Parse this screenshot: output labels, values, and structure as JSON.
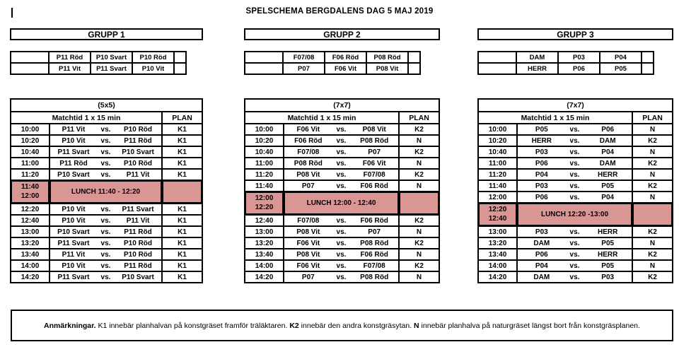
{
  "title": "SPELSCHEMA BERGDALENS DAG 5 MAJ 2019",
  "vs_label": "vs.",
  "colors": {
    "lunch_bg": "#d99694",
    "border": "#000000"
  },
  "groups": [
    {
      "name": "GRUPP 1",
      "format": "(5x5)",
      "matchtid_label": "Matchtid 1 x 15 min",
      "plan_label": "PLAN",
      "teams": [
        [
          "P11 Röd",
          "P10 Svart",
          "P10 Röd"
        ],
        [
          "P11 Vit",
          "P11 Svart",
          "P10 Vit"
        ]
      ],
      "schedule": [
        {
          "time": "10:00",
          "home": "P11 Vit",
          "away": "P10 Röd",
          "plan": "K1"
        },
        {
          "time": "10:20",
          "home": "P10 Vit",
          "away": "P11 Röd",
          "plan": "K1"
        },
        {
          "time": "10:40",
          "home": "P11 Svart",
          "away": "P10 Svart",
          "plan": "K1"
        },
        {
          "time": "11:00",
          "home": "P11 Röd",
          "away": "P10 Röd",
          "plan": "K1"
        },
        {
          "time": "11:20",
          "home": "P10 Svart",
          "away": "P11 Vit",
          "plan": "K1"
        },
        {
          "lunch": true,
          "times": [
            "11:40",
            "12:00"
          ],
          "label": "LUNCH 11:40 - 12:20"
        },
        {
          "time": "12:20",
          "home": "P10 Vit",
          "away": "P11 Svart",
          "plan": "K1"
        },
        {
          "time": "12:40",
          "home": "P10 Vit",
          "away": "P11 Vit",
          "plan": "K1"
        },
        {
          "time": "13:00",
          "home": "P10 Svart",
          "away": "P11 Röd",
          "plan": "K1"
        },
        {
          "time": "13:20",
          "home": "P11 Svart",
          "away": "P10 Röd",
          "plan": "K1"
        },
        {
          "time": "13:40",
          "home": "P11 Vit",
          "away": "P10 Röd",
          "plan": "K1"
        },
        {
          "time": "14:00",
          "home": "P10 Vit",
          "away": "P11 Röd",
          "plan": "K1"
        },
        {
          "time": "14:20",
          "home": "P11 Svart",
          "away": "P10 Svart",
          "plan": "K1"
        }
      ]
    },
    {
      "name": "GRUPP 2",
      "format": "(7x7)",
      "matchtid_label": "Matchtid 1 x 15 min",
      "plan_label": "PLAN",
      "teams": [
        [
          "F07/08",
          "F06 Röd",
          "P08 Röd"
        ],
        [
          "P07",
          "F06 Vit",
          "P08 Vit"
        ]
      ],
      "schedule": [
        {
          "time": "10:00",
          "home": "F06 Vit",
          "away": "P08 Vit",
          "plan": "K2"
        },
        {
          "time": "10:20",
          "home": "F06 Röd",
          "away": "P08 Röd",
          "plan": "N"
        },
        {
          "time": "10:40",
          "home": "F07/08",
          "away": "P07",
          "plan": "K2"
        },
        {
          "time": "11:00",
          "home": "P08 Röd",
          "away": "F06 Vit",
          "plan": "N"
        },
        {
          "time": "11:20",
          "home": "P08 Vit",
          "away": "F07/08",
          "plan": "K2"
        },
        {
          "time": "11:40",
          "home": "P07",
          "away": "F06 Röd",
          "plan": "N"
        },
        {
          "lunch": true,
          "times": [
            "12:00",
            "12:20"
          ],
          "label": "LUNCH 12:00 - 12:40"
        },
        {
          "time": "12:40",
          "home": "F07/08",
          "away": "F06 Röd",
          "plan": "K2"
        },
        {
          "time": "13:00",
          "home": "P08 Vit",
          "away": "P07",
          "plan": "N"
        },
        {
          "time": "13:20",
          "home": "F06 Vit",
          "away": "P08 Röd",
          "plan": "K2"
        },
        {
          "time": "13:40",
          "home": "P08 Vit",
          "away": "F06 Röd",
          "plan": "N"
        },
        {
          "time": "14:00",
          "home": "F06 Vit",
          "away": "F07/08",
          "plan": "K2"
        },
        {
          "time": "14:20",
          "home": "P07",
          "away": "P08 Röd",
          "plan": "N"
        }
      ]
    },
    {
      "name": "GRUPP 3",
      "format": "(7x7)",
      "matchtid_label": "Matchtid 1 x 15 min",
      "plan_label": "PLAN",
      "teams": [
        [
          "DAM",
          "P03",
          "P04"
        ],
        [
          "HERR",
          "P06",
          "P05"
        ]
      ],
      "schedule": [
        {
          "time": "10:00",
          "home": "P05",
          "away": "P06",
          "plan": "N"
        },
        {
          "time": "10:20",
          "home": "HERR",
          "away": "DAM",
          "plan": "K2"
        },
        {
          "time": "10:40",
          "home": "P03",
          "away": "P04",
          "plan": "N"
        },
        {
          "time": "11:00",
          "home": "P06",
          "away": "DAM",
          "plan": "K2"
        },
        {
          "time": "11:20",
          "home": "P04",
          "away": "HERR",
          "plan": "N"
        },
        {
          "time": "11:40",
          "home": "P03",
          "away": "P05",
          "plan": "K2"
        },
        {
          "time": "12:00",
          "home": "P06",
          "away": "P04",
          "plan": "N"
        },
        {
          "lunch": true,
          "times": [
            "12:20",
            "12:40"
          ],
          "label": "LUNCH 12:20 -13:00"
        },
        {
          "time": "13:00",
          "home": "P03",
          "away": "HERR",
          "plan": "K2"
        },
        {
          "time": "13:20",
          "home": "DAM",
          "away": "P05",
          "plan": "N"
        },
        {
          "time": "13:40",
          "home": "P06",
          "away": "HERR",
          "plan": "K2"
        },
        {
          "time": "14:00",
          "home": "P04",
          "away": "P05",
          "plan": "N"
        },
        {
          "time": "14:20",
          "home": "DAM",
          "away": "P03",
          "plan": "K2"
        }
      ]
    }
  ],
  "note_segments": [
    {
      "text": "Anmärkningar. ",
      "bold": true
    },
    {
      "text": "K1 innebär planhalvan på konstgräset framför träläktaren. ",
      "bold": false
    },
    {
      "text": "K2",
      "bold": true
    },
    {
      "text": " innebär den andra konstgräsytan. ",
      "bold": false
    },
    {
      "text": "N",
      "bold": true
    },
    {
      "text": " innebär planhalva på naturgräset längst bort från konstgräsplanen.",
      "bold": false
    }
  ]
}
